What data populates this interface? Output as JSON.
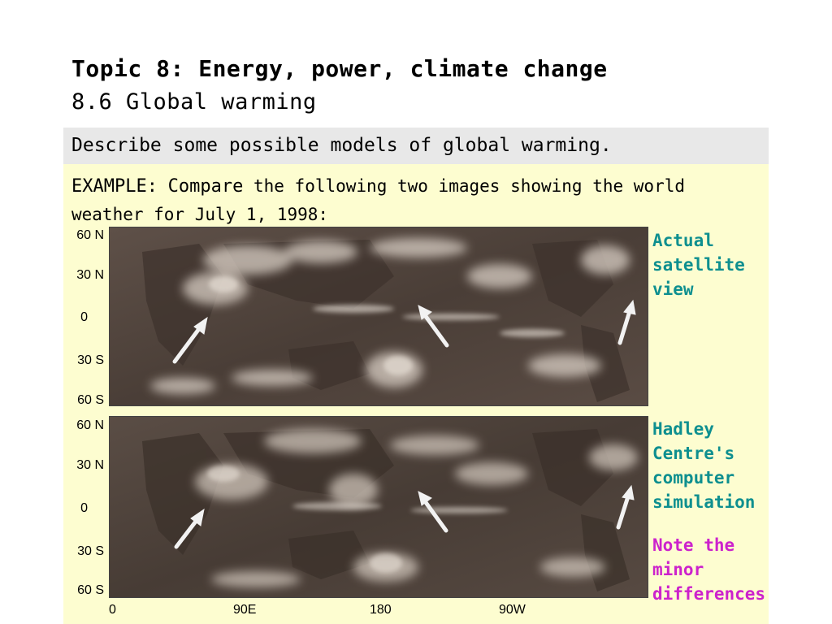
{
  "header": {
    "title": "Topic 8: Energy, power, climate change",
    "subtitle": "8.6 Global warming"
  },
  "objective": "Describe some possible models of global warming.",
  "example": {
    "label": "EXAMPLE:",
    "compare": "Compare",
    "rest": " the following two images showing the world weather for July 1, 1998:"
  },
  "maps": {
    "top": {
      "latitudes": [
        "60 N",
        "30 N",
        "0",
        "30 S",
        "60 S"
      ],
      "caption": [
        "Actual",
        "satellite",
        "view"
      ]
    },
    "bottom": {
      "latitudes": [
        "60 N",
        "30 N",
        "0",
        "30 S",
        "60 S"
      ],
      "caption": [
        "Hadley",
        "Centre's",
        "computer",
        "simulation"
      ]
    },
    "longitudes": [
      "0",
      "90E",
      "180",
      "90W"
    ]
  },
  "note": [
    "Note the",
    "minor",
    "differences"
  ],
  "colors": {
    "caption_teal": "#0e8f8f",
    "note_magenta": "#cc22cc",
    "content_bg": "#fdfdd0",
    "objective_bg": "#e8e8e8"
  }
}
